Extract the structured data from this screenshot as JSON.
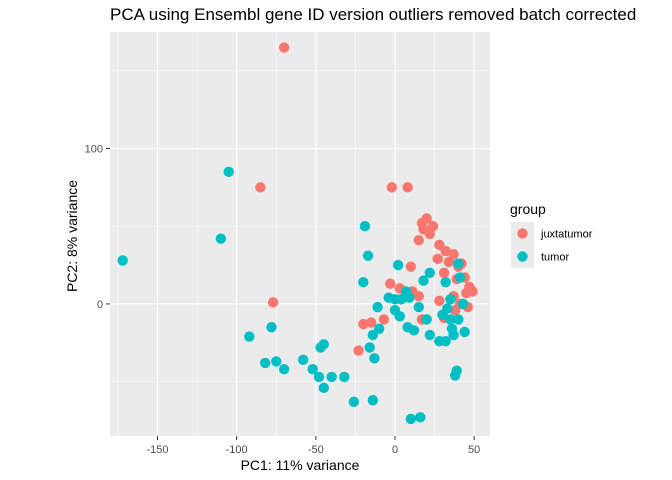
{
  "chart_data": {
    "type": "scatter",
    "title": "PCA using Ensembl gene ID version outliers removed batch corrected",
    "xlabel": "PC1: 11% variance",
    "ylabel": "PC2: 8% variance",
    "xlim": [
      -180,
      60
    ],
    "ylim": [
      -85,
      175
    ],
    "xticks": [
      {
        "value": -150,
        "label": "-150"
      },
      {
        "value": -100,
        "label": "-100"
      },
      {
        "value": -50,
        "label": "-50"
      },
      {
        "value": 0,
        "label": "0"
      },
      {
        "value": 50,
        "label": "50"
      }
    ],
    "yticks": [
      {
        "value": 0,
        "label": "0"
      },
      {
        "value": 100,
        "label": "100"
      }
    ],
    "grid": true,
    "legend": {
      "title": "group",
      "position": "right"
    },
    "series": [
      {
        "name": "juxtatumor",
        "color": "#F8766D",
        "points": [
          [
            -70,
            165
          ],
          [
            -85,
            75
          ],
          [
            -77,
            1
          ],
          [
            -2,
            75
          ],
          [
            8,
            75
          ],
          [
            17,
            52
          ],
          [
            20,
            55
          ],
          [
            24,
            50
          ],
          [
            18,
            48
          ],
          [
            22,
            45
          ],
          [
            15,
            41
          ],
          [
            28,
            38
          ],
          [
            32,
            34
          ],
          [
            37,
            32
          ],
          [
            27,
            29
          ],
          [
            34,
            27
          ],
          [
            42,
            26
          ],
          [
            40,
            24
          ],
          [
            31,
            20
          ],
          [
            44,
            17
          ],
          [
            39,
            16
          ],
          [
            47,
            11
          ],
          [
            49,
            8
          ],
          [
            45,
            7
          ],
          [
            37,
            5
          ],
          [
            10,
            24
          ],
          [
            11,
            8
          ],
          [
            -3,
            13
          ],
          [
            3,
            10
          ],
          [
            7,
            6
          ],
          [
            15,
            5
          ],
          [
            28,
            2
          ],
          [
            41,
            0
          ],
          [
            46,
            -2
          ],
          [
            38,
            -4
          ],
          [
            31,
            -9
          ],
          [
            17,
            -10
          ],
          [
            -7,
            -10
          ],
          [
            -20,
            -13
          ],
          [
            -15,
            -12
          ],
          [
            -23,
            -30
          ]
        ]
      },
      {
        "name": "tumor",
        "color": "#00BFC4",
        "points": [
          [
            -172,
            28
          ],
          [
            -105,
            85
          ],
          [
            -110,
            42
          ],
          [
            -78,
            -15
          ],
          [
            -92,
            -21
          ],
          [
            -82,
            -38
          ],
          [
            -75,
            -37
          ],
          [
            -70,
            -42
          ],
          [
            -58,
            -36
          ],
          [
            -52,
            -42
          ],
          [
            -47,
            -28
          ],
          [
            -45,
            -26
          ],
          [
            -48,
            -47
          ],
          [
            -40,
            -47
          ],
          [
            -45,
            -54
          ],
          [
            -32,
            -47
          ],
          [
            -26,
            -63
          ],
          [
            -14,
            -62
          ],
          [
            -13,
            -35
          ],
          [
            -16,
            -28
          ],
          [
            -10,
            -16
          ],
          [
            -14,
            -20
          ],
          [
            -11,
            -2
          ],
          [
            -4,
            4
          ],
          [
            0,
            3
          ],
          [
            4,
            3
          ],
          [
            7,
            8
          ],
          [
            9,
            4
          ],
          [
            2,
            25
          ],
          [
            -20,
            14
          ],
          [
            -17,
            31
          ],
          [
            -19,
            50
          ],
          [
            3,
            -8
          ],
          [
            8,
            -15
          ],
          [
            12,
            -17
          ],
          [
            15,
            -2
          ],
          [
            18,
            15
          ],
          [
            22,
            20
          ],
          [
            30,
            -7
          ],
          [
            33,
            -3
          ],
          [
            35,
            -10
          ],
          [
            20,
            -10
          ],
          [
            22,
            -20
          ],
          [
            28,
            -24
          ],
          [
            32,
            -24
          ],
          [
            37,
            -20
          ],
          [
            36,
            -16
          ],
          [
            44,
            -18
          ],
          [
            40,
            -10
          ],
          [
            43,
            0
          ],
          [
            35,
            3
          ],
          [
            32,
            14
          ],
          [
            41,
            17
          ],
          [
            40,
            26
          ],
          [
            38,
            -46
          ],
          [
            39,
            -43
          ],
          [
            10,
            -74
          ],
          [
            16,
            -73
          ],
          [
            0,
            -4
          ]
        ]
      }
    ]
  }
}
